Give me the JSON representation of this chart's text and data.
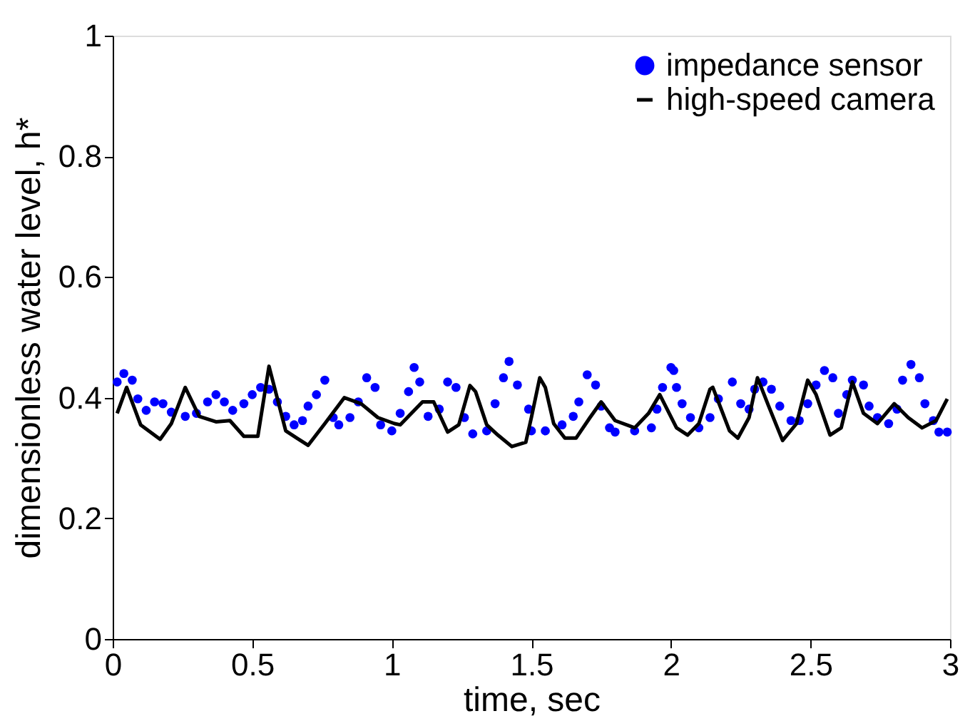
{
  "chart_data": {
    "type": "line",
    "xlabel": "time, sec",
    "ylabel": "dimensionless water level, h*",
    "xlim": [
      0,
      3
    ],
    "xticks": [
      0,
      0.5,
      1,
      1.5,
      2,
      2.5,
      3
    ],
    "ylim": [
      0,
      1
    ],
    "yticks": [
      0,
      0.2,
      0.4,
      0.6,
      0.8,
      1
    ],
    "grid": false,
    "legend": "top right",
    "series": [
      {
        "name": "impedance sensor",
        "type": "scatter",
        "marker": "circle",
        "color": "#0000ff",
        "x": [
          0.016,
          0.04,
          0.07,
          0.09,
          0.12,
          0.15,
          0.18,
          0.21,
          0.26,
          0.3,
          0.34,
          0.37,
          0.4,
          0.43,
          0.47,
          0.5,
          0.53,
          0.56,
          0.59,
          0.62,
          0.65,
          0.68,
          0.7,
          0.73,
          0.76,
          0.79,
          0.81,
          0.85,
          0.88,
          0.91,
          0.94,
          0.96,
          1.0,
          1.03,
          1.06,
          1.08,
          1.1,
          1.13,
          1.17,
          1.2,
          1.23,
          1.26,
          1.29,
          1.34,
          1.37,
          1.4,
          1.42,
          1.45,
          1.49,
          1.5,
          1.55,
          1.61,
          1.65,
          1.67,
          1.7,
          1.73,
          1.75,
          1.78,
          1.8,
          1.87,
          1.93,
          1.95,
          1.97,
          2.0,
          2.01,
          2.02,
          2.04,
          2.07,
          2.1,
          2.14,
          2.17,
          2.22,
          2.25,
          2.28,
          2.3,
          2.33,
          2.36,
          2.39,
          2.43,
          2.46,
          2.49,
          2.52,
          2.55,
          2.58,
          2.6,
          2.63,
          2.65,
          2.69,
          2.71,
          2.74,
          2.78,
          2.81,
          2.83,
          2.86,
          2.89,
          2.91,
          2.94,
          2.96,
          2.99
        ],
        "values": [
          0.426,
          0.44,
          0.429,
          0.398,
          0.379,
          0.393,
          0.39,
          0.376,
          0.369,
          0.374,
          0.393,
          0.405,
          0.393,
          0.379,
          0.39,
          0.405,
          0.417,
          0.414,
          0.393,
          0.369,
          0.355,
          0.362,
          0.386,
          0.405,
          0.429,
          0.367,
          0.355,
          0.367,
          0.393,
          0.433,
          0.417,
          0.355,
          0.345,
          0.374,
          0.41,
          0.45,
          0.426,
          0.369,
          0.381,
          0.426,
          0.417,
          0.367,
          0.34,
          0.345,
          0.39,
          0.433,
          0.46,
          0.421,
          0.381,
          0.345,
          0.345,
          0.355,
          0.369,
          0.393,
          0.438,
          0.421,
          0.386,
          0.35,
          0.343,
          0.345,
          0.35,
          0.381,
          0.417,
          0.45,
          0.445,
          0.417,
          0.39,
          0.367,
          0.35,
          0.367,
          0.398,
          0.426,
          0.39,
          0.381,
          0.414,
          0.426,
          0.414,
          0.386,
          0.362,
          0.362,
          0.39,
          0.421,
          0.445,
          0.433,
          0.374,
          0.405,
          0.429,
          0.421,
          0.386,
          0.367,
          0.357,
          0.381,
          0.429,
          0.455,
          0.433,
          0.39,
          0.362,
          0.343,
          0.343
        ]
      },
      {
        "name": "high-speed camera",
        "line_style": "solid",
        "marker": "none",
        "color": "#000000",
        "x": [
          0.016,
          0.05,
          0.1,
          0.17,
          0.21,
          0.26,
          0.31,
          0.37,
          0.42,
          0.47,
          0.52,
          0.56,
          0.62,
          0.66,
          0.7,
          0.76,
          0.83,
          0.89,
          0.95,
          1.01,
          1.03,
          1.11,
          1.15,
          1.2,
          1.24,
          1.28,
          1.3,
          1.34,
          1.38,
          1.43,
          1.48,
          1.5,
          1.53,
          1.55,
          1.58,
          1.62,
          1.66,
          1.71,
          1.75,
          1.8,
          1.87,
          1.92,
          1.96,
          2.02,
          2.06,
          2.1,
          2.14,
          2.15,
          2.21,
          2.24,
          2.28,
          2.31,
          2.35,
          2.4,
          2.45,
          2.49,
          2.52,
          2.57,
          2.61,
          2.65,
          2.69,
          2.74,
          2.8,
          2.85,
          2.9,
          2.95,
          2.99
        ],
        "values": [
          0.374,
          0.417,
          0.355,
          0.331,
          0.357,
          0.417,
          0.369,
          0.36,
          0.362,
          0.336,
          0.336,
          0.452,
          0.345,
          0.333,
          0.321,
          0.357,
          0.4,
          0.39,
          0.367,
          0.357,
          0.355,
          0.393,
          0.393,
          0.343,
          0.355,
          0.42,
          0.41,
          0.355,
          0.338,
          0.319,
          0.326,
          0.367,
          0.433,
          0.417,
          0.357,
          0.333,
          0.333,
          0.367,
          0.393,
          0.362,
          0.35,
          0.374,
          0.405,
          0.35,
          0.338,
          0.357,
          0.414,
          0.417,
          0.345,
          0.333,
          0.367,
          0.433,
          0.386,
          0.329,
          0.357,
          0.429,
          0.405,
          0.338,
          0.35,
          0.426,
          0.374,
          0.357,
          0.39,
          0.367,
          0.35,
          0.362,
          0.398
        ]
      }
    ]
  }
}
